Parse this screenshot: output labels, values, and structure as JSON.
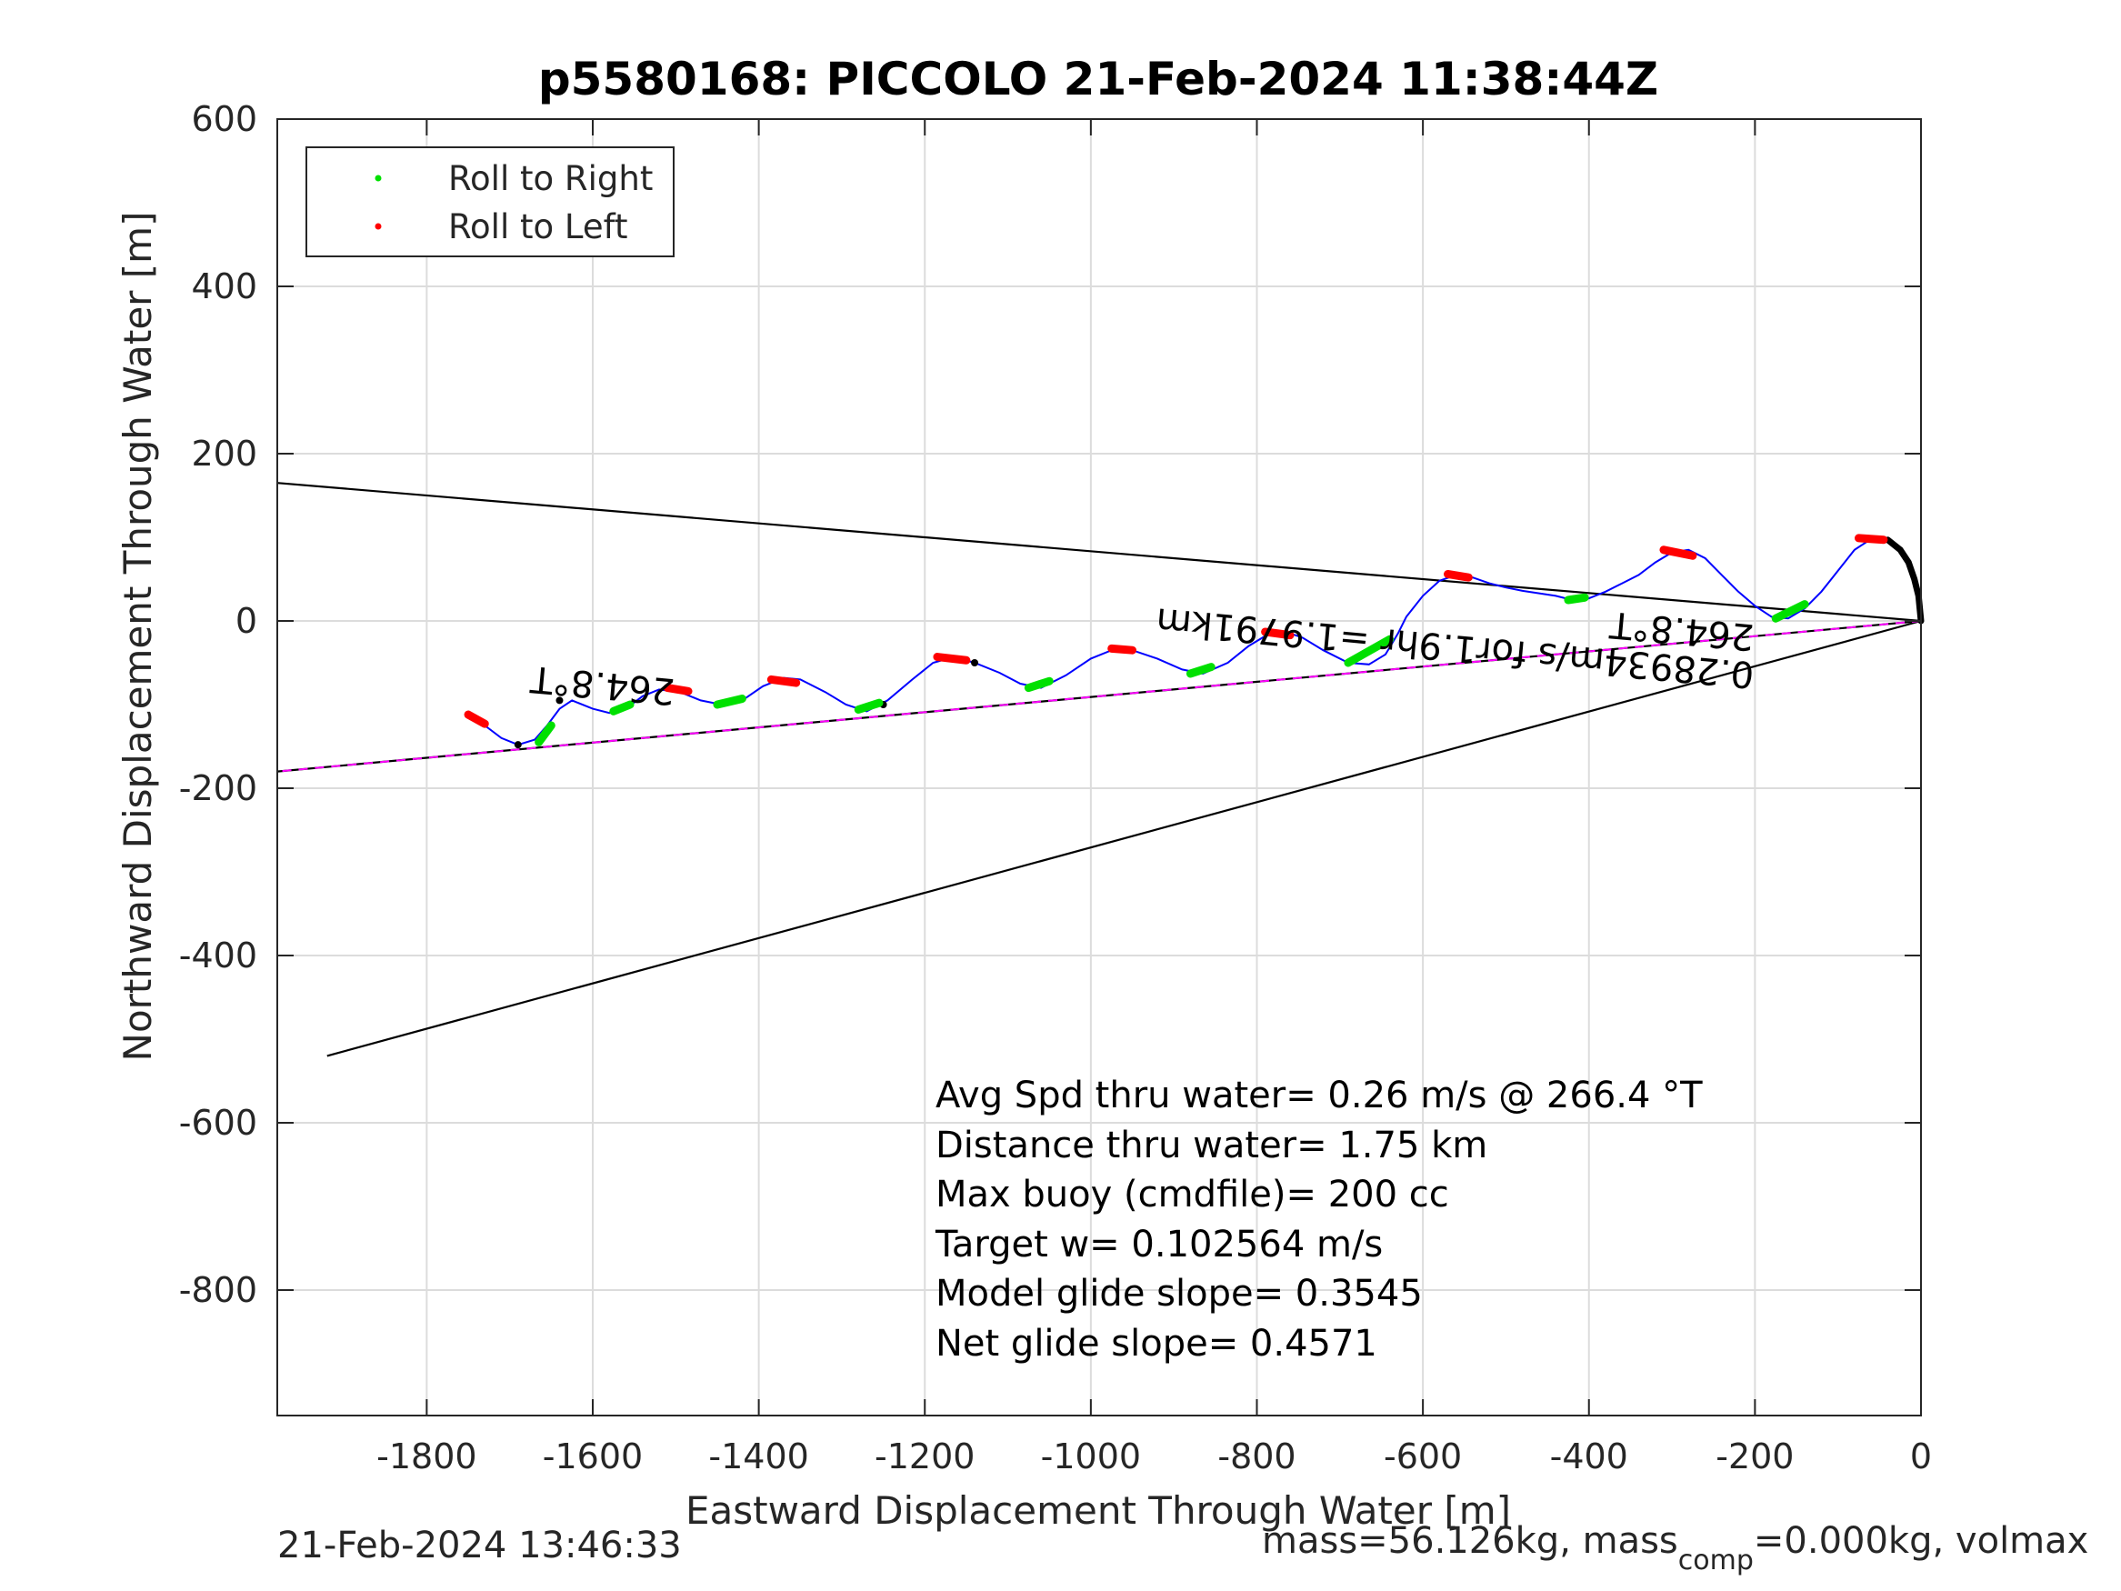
{
  "chart_data": {
    "type": "line",
    "title": "p5580168: PICCOLO 21-Feb-2024 11:38:44Z",
    "xlabel": "Eastward Displacement Through Water [m]",
    "ylabel": "Northward Displacement Through Water [m]",
    "xlim": [
      -1980,
      0
    ],
    "ylim": [
      -950,
      600
    ],
    "xticks": [
      -1800,
      -1600,
      -1400,
      -1200,
      -1000,
      -800,
      -600,
      -400,
      -200,
      0
    ],
    "yticks": [
      600,
      400,
      200,
      0,
      -200,
      -400,
      -600,
      -800
    ],
    "xtick_labels": [
      "-1800",
      "-1600",
      "-1400",
      "-1200",
      "-1000",
      "-800",
      "-600",
      "-400",
      "-200",
      "0"
    ],
    "ytick_labels": [
      "600",
      "400",
      "200",
      "0",
      "-200",
      "-400",
      "-600",
      "-800"
    ],
    "grid": true,
    "legend_position": "top-left",
    "legend": [
      {
        "label": "Roll to Right",
        "color": "#00e000"
      },
      {
        "label": "Roll to Left",
        "color": "#ff0000"
      }
    ],
    "track": {
      "color": "#0000ff",
      "points": [
        [
          0,
          0
        ],
        [
          -3,
          30
        ],
        [
          -8,
          50
        ],
        [
          -15,
          70
        ],
        [
          -25,
          85
        ],
        [
          -40,
          97
        ],
        [
          -60,
          98
        ],
        [
          -80,
          85
        ],
        [
          -100,
          60
        ],
        [
          -120,
          35
        ],
        [
          -140,
          15
        ],
        [
          -160,
          3
        ],
        [
          -180,
          5
        ],
        [
          -200,
          18
        ],
        [
          -220,
          35
        ],
        [
          -240,
          55
        ],
        [
          -260,
          75
        ],
        [
          -280,
          85
        ],
        [
          -300,
          82
        ],
        [
          -320,
          70
        ],
        [
          -340,
          55
        ],
        [
          -360,
          45
        ],
        [
          -380,
          35
        ],
        [
          -400,
          27
        ],
        [
          -420,
          25
        ],
        [
          -440,
          30
        ],
        [
          -460,
          33
        ],
        [
          -480,
          36
        ],
        [
          -500,
          40
        ],
        [
          -520,
          45
        ],
        [
          -540,
          52
        ],
        [
          -560,
          55
        ],
        [
          -580,
          48
        ],
        [
          -600,
          30
        ],
        [
          -620,
          5
        ],
        [
          -630,
          -15
        ],
        [
          -645,
          -40
        ],
        [
          -665,
          -52
        ],
        [
          -690,
          -50
        ],
        [
          -720,
          -35
        ],
        [
          -745,
          -20
        ],
        [
          -765,
          -13
        ],
        [
          -790,
          -18
        ],
        [
          -810,
          -30
        ],
        [
          -835,
          -50
        ],
        [
          -865,
          -63
        ],
        [
          -890,
          -58
        ],
        [
          -920,
          -45
        ],
        [
          -950,
          -35
        ],
        [
          -975,
          -35
        ],
        [
          -1000,
          -45
        ],
        [
          -1030,
          -65
        ],
        [
          -1060,
          -80
        ],
        [
          -1085,
          -75
        ],
        [
          -1110,
          -62
        ],
        [
          -1140,
          -50
        ],
        [
          -1165,
          -43
        ],
        [
          -1190,
          -50
        ],
        [
          -1215,
          -70
        ],
        [
          -1245,
          -95
        ],
        [
          -1270,
          -108
        ],
        [
          -1295,
          -100
        ],
        [
          -1320,
          -85
        ],
        [
          -1350,
          -70
        ],
        [
          -1370,
          -68
        ],
        [
          -1395,
          -78
        ],
        [
          -1420,
          -95
        ],
        [
          -1445,
          -100
        ],
        [
          -1470,
          -95
        ],
        [
          -1495,
          -85
        ],
        [
          -1520,
          -82
        ],
        [
          -1540,
          -90
        ],
        [
          -1560,
          -105
        ],
        [
          -1580,
          -110
        ],
        [
          -1600,
          -105
        ],
        [
          -1625,
          -95
        ],
        [
          -1640,
          -105
        ],
        [
          -1655,
          -125
        ],
        [
          -1670,
          -142
        ],
        [
          -1690,
          -148
        ],
        [
          -1710,
          -140
        ],
        [
          -1730,
          -125
        ],
        [
          -1745,
          -112
        ]
      ]
    },
    "heading_lines": [
      {
        "color": "#000000",
        "points": [
          [
            0,
            0
          ],
          [
            -1980,
            165
          ]
        ]
      },
      {
        "color": "#000000",
        "points": [
          [
            0,
            0
          ],
          [
            -1980,
            -180
          ]
        ]
      },
      {
        "color": "#000000",
        "points": [
          [
            0,
            0
          ],
          [
            -1920,
            -520
          ]
        ]
      },
      {
        "color": "#ff00ff",
        "dashed": true,
        "points": [
          [
            0,
            0
          ],
          [
            -1980,
            -180
          ]
        ]
      }
    ],
    "roll_right_segments": [
      [
        -1665,
        -145,
        -1650,
        -125
      ],
      [
        -1575,
        -108,
        -1555,
        -100
      ],
      [
        -1450,
        -100,
        -1420,
        -93
      ],
      [
        -1280,
        -106,
        -1255,
        -98
      ],
      [
        -1075,
        -80,
        -1050,
        -72
      ],
      [
        -880,
        -63,
        -855,
        -55
      ],
      [
        -690,
        -50,
        -640,
        -22
      ],
      [
        -425,
        25,
        -405,
        28
      ],
      [
        -175,
        3,
        -140,
        20
      ]
    ],
    "roll_left_segments": [
      [
        -1750,
        -112,
        -1730,
        -123
      ],
      [
        -1510,
        -80,
        -1485,
        -84
      ],
      [
        -1385,
        -70,
        -1355,
        -74
      ],
      [
        -1185,
        -43,
        -1150,
        -47
      ],
      [
        -975,
        -33,
        -950,
        -35
      ],
      [
        -790,
        -13,
        -760,
        -17
      ],
      [
        -570,
        56,
        -545,
        52
      ],
      [
        -310,
        85,
        -275,
        78
      ],
      [
        -75,
        99,
        -45,
        97
      ]
    ],
    "annotations": [
      {
        "text": "264.8°T",
        "x": -1500,
        "y": -70,
        "rotation": 185.2
      },
      {
        "text": "264.8°T",
        "x": -200,
        "y": -5,
        "rotation": 185.2
      },
      {
        "text": "0.28934m/s for1.9hr =1.9791km",
        "x": -200,
        "y": -50,
        "rotation": 185.2
      }
    ],
    "stats": [
      "Avg Spd thru water=  0.26 m/s @ 266.4 °T",
      "Distance thru water=  1.75 km",
      "Max buoy (cmdfile)= 200 cc",
      "Target w= 0.102564 m/s",
      "Model glide slope= 0.3545",
      "Net glide slope= 0.4571"
    ]
  },
  "footer": {
    "timestamp": "21-Feb-2024 13:46:33",
    "mass_prefix": "mass=56.126kg, mass",
    "mass_sub": "comp",
    "mass_suffix": "=0.000kg, volmax"
  }
}
